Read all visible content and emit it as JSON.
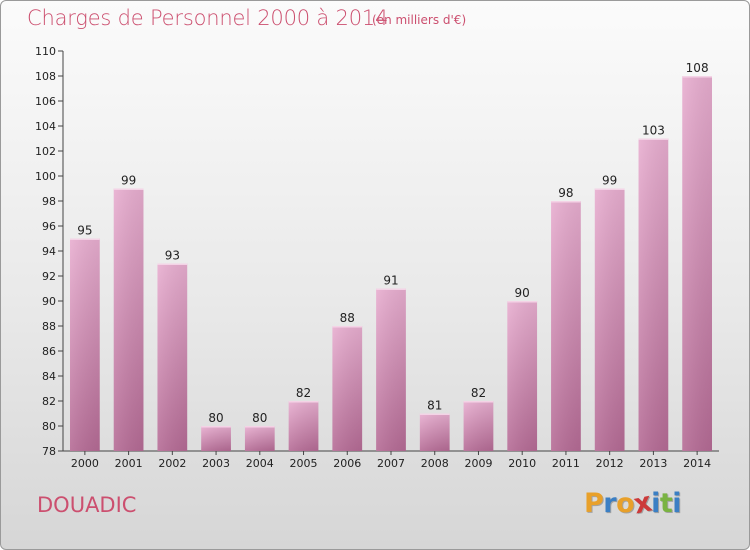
{
  "header": {
    "title": "Charges de Personnel 2000 à 2014",
    "subtitle": "(en milliers d'€)"
  },
  "footer": {
    "commune": "DOUADIC",
    "logo_text": "Proxiti",
    "logo_colors": [
      "#e8a02a",
      "#3b7fc4",
      "#e8a02a",
      "#cc3a3a",
      "#3b7fc4",
      "#7ab342",
      "#3b7fc4"
    ]
  },
  "colors": {
    "accent": "#cc4f6f",
    "bar_light": "#e8aed0",
    "bar_dark": "#b56b95"
  },
  "chart_data": {
    "type": "bar",
    "categories": [
      "2000",
      "2001",
      "2002",
      "2003",
      "2004",
      "2005",
      "2006",
      "2007",
      "2008",
      "2009",
      "2010",
      "2011",
      "2012",
      "2013",
      "2014"
    ],
    "values": [
      95,
      99,
      93,
      80,
      80,
      82,
      88,
      91,
      81,
      82,
      90,
      98,
      99,
      103,
      108
    ],
    "ylim": [
      78,
      110
    ],
    "yticks": [
      78,
      80,
      82,
      84,
      86,
      88,
      90,
      92,
      94,
      96,
      98,
      100,
      102,
      104,
      106,
      108,
      110
    ],
    "grid": false,
    "legend": "none"
  }
}
